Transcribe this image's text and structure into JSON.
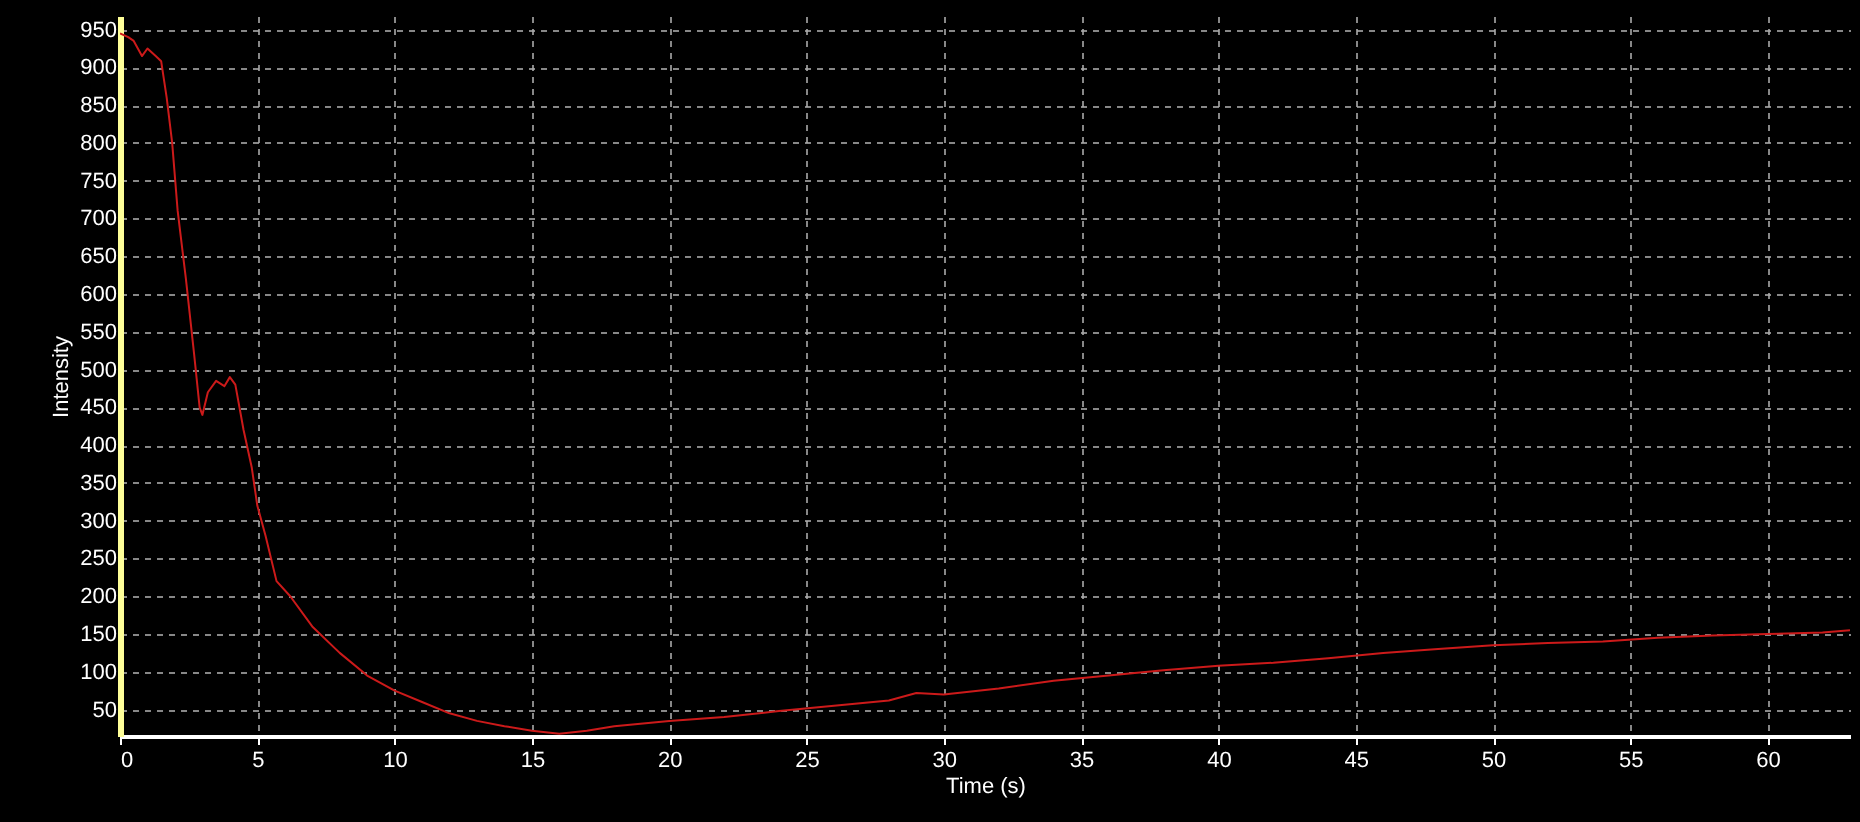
{
  "chart_data": {
    "type": "line",
    "xlabel": "Time (s)",
    "ylabel": "Intensity",
    "x": [
      0,
      0.3,
      0.5,
      0.8,
      1.0,
      1.3,
      1.5,
      1.7,
      1.9,
      2.1,
      2.4,
      2.7,
      2.9,
      3.0,
      3.2,
      3.5,
      3.8,
      4.0,
      4.2,
      4.5,
      4.8,
      5.0,
      5.3,
      5.7,
      6.2,
      7,
      8,
      9,
      10,
      11,
      12,
      13,
      14,
      15,
      16,
      17,
      18,
      20,
      22,
      24,
      26,
      28,
      29,
      30,
      32,
      34,
      36,
      38,
      40,
      42,
      44,
      46,
      48,
      50,
      52,
      54,
      56,
      58,
      60,
      62,
      63
    ],
    "series": [
      {
        "color": "#cc1a1a",
        "values": [
          945,
          940,
          935,
          915,
          925,
          915,
          908,
          860,
          800,
          710,
          620,
          520,
          450,
          440,
          470,
          485,
          478,
          490,
          480,
          420,
          370,
          320,
          280,
          220,
          200,
          160,
          125,
          95,
          75,
          60,
          45,
          35,
          28,
          22,
          18,
          22,
          28,
          35,
          40,
          48,
          55,
          62,
          72,
          70,
          78,
          88,
          95,
          102,
          108,
          112,
          118,
          125,
          130,
          135,
          138,
          140,
          145,
          148,
          150,
          152,
          155
        ]
      }
    ],
    "xlim": [
      0,
      63
    ],
    "xticks": [
      0,
      5,
      10,
      15,
      20,
      25,
      30,
      35,
      40,
      45,
      50,
      55,
      60
    ],
    "ylim": [
      15,
      968
    ],
    "yticks": [
      50,
      100,
      150,
      200,
      250,
      300,
      350,
      400,
      450,
      500,
      550,
      600,
      650,
      700,
      750,
      800,
      850,
      900,
      950
    ],
    "grid": true,
    "marker": "none",
    "line_style": "solid"
  }
}
